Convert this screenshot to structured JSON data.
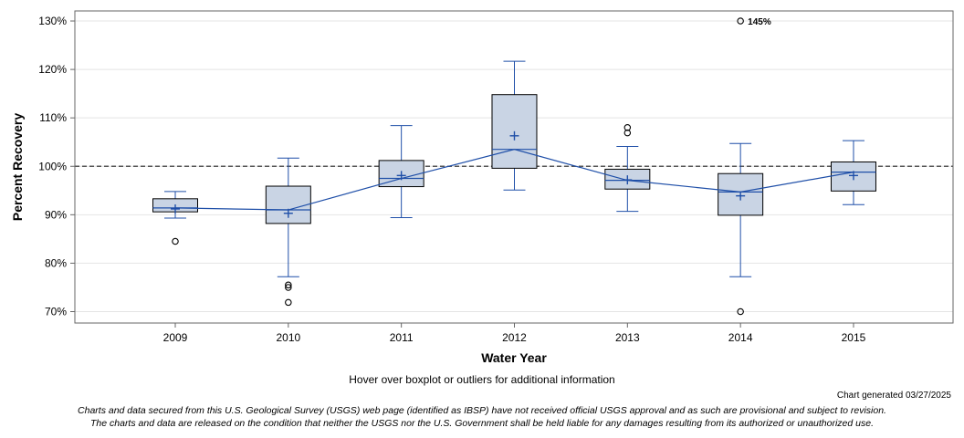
{
  "chart_data": {
    "type": "boxplot",
    "title": "",
    "xlabel": "Water Year",
    "ylabel": "Percent Recovery",
    "ylim": [
      67.5,
      132
    ],
    "yticks": [
      70,
      80,
      90,
      100,
      110,
      120,
      130
    ],
    "ytick_labels": [
      "70%",
      "80%",
      "90%",
      "100%",
      "110%",
      "120%",
      "130%"
    ],
    "reference_line": 100,
    "categories": [
      "2009",
      "2010",
      "2011",
      "2012",
      "2013",
      "2014",
      "2015"
    ],
    "boxes": [
      {
        "year": "2009",
        "whisker_low": 89.3,
        "q1": 90.6,
        "median": 91.4,
        "q3": 93.3,
        "whisker_high": 94.8,
        "mean": 91.2,
        "outliers": [
          84.5
        ]
      },
      {
        "year": "2010",
        "whisker_low": 77.2,
        "q1": 88.2,
        "median": 91.0,
        "q3": 95.9,
        "whisker_high": 101.7,
        "mean": 90.3,
        "outliers": [
          75.5,
          75.0,
          71.9
        ]
      },
      {
        "year": "2011",
        "whisker_low": 89.4,
        "q1": 95.8,
        "median": 97.5,
        "q3": 101.2,
        "whisker_high": 108.4,
        "mean": 98.1,
        "outliers": []
      },
      {
        "year": "2012",
        "whisker_low": 95.1,
        "q1": 99.6,
        "median": 103.5,
        "q3": 114.8,
        "whisker_high": 121.7,
        "mean": 106.3,
        "outliers": []
      },
      {
        "year": "2013",
        "whisker_low": 90.7,
        "q1": 95.3,
        "median": 97.1,
        "q3": 99.4,
        "whisker_high": 104.1,
        "mean": 97.2,
        "outliers": [
          108.0,
          106.9
        ]
      },
      {
        "year": "2014",
        "whisker_low": 77.2,
        "q1": 89.9,
        "median": 94.7,
        "q3": 98.5,
        "whisker_high": 104.7,
        "mean": 93.9,
        "outliers": [
          70.0,
          130.0
        ]
      },
      {
        "year": "2015",
        "whisker_low": 92.1,
        "q1": 94.9,
        "median": 98.8,
        "q3": 100.9,
        "whisker_high": 105.3,
        "mean": 98.1,
        "outliers": []
      }
    ],
    "offscale_label": "145%",
    "colors": {
      "box_fill": "#c9d4e4",
      "box_stroke": "#000000",
      "series": "#1f4fa8",
      "reference": "#555555",
      "grid": "#e4e4e4"
    }
  },
  "notes": {
    "hover": "Hover over boxplot or outliers for additional information",
    "generated": "Chart generated 03/27/2025",
    "disclaimer_1": "Charts and data secured from this U.S. Geological Survey (USGS) web page (identified as IBSP) have not received official USGS approval and as such are provisional and subject to revision.",
    "disclaimer_2": "The charts and data are released on the condition that neither the USGS nor the U.S. Government shall be held liable for any damages resulting from its authorized or unauthorized use."
  }
}
